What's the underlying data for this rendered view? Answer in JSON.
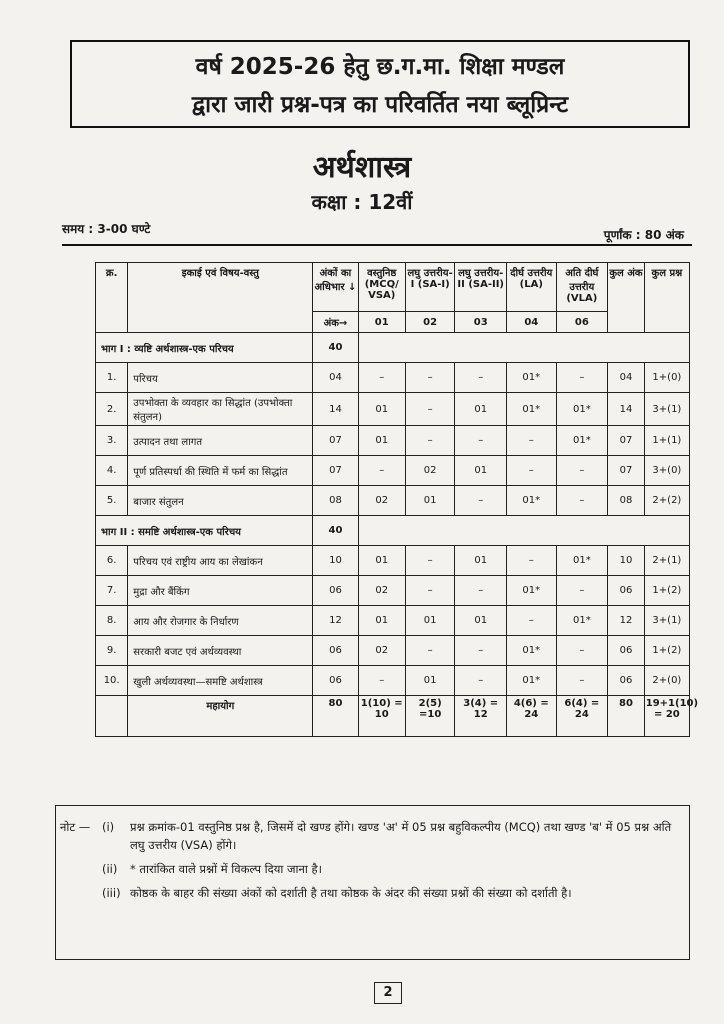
{
  "header": {
    "line1": "वर्ष 2025-26 हेतु छ.ग.मा. शिक्षा मण्डल",
    "line2": "द्वारा जारी प्रश्न-पत्र का परिवर्तित नया ब्लूप्रिन्ट"
  },
  "subject": "अर्थशास्त्र",
  "class": "कक्षा : 12वीं",
  "time": "समय : 3-00 घण्टे",
  "max_marks": "पूर्णांक : 80 अंक",
  "table": {
    "columns": [
      "क्र.",
      "इकाई एवं विषय-वस्तु",
      "अंकों का अधिभार ↓",
      "वस्तुनिष्ठ (MCQ/ VSA)",
      "लघु उत्तरीय-I (SA-I)",
      "लघु उत्तरीय-II (SA-II)",
      "दीर्घ उत्तरीय (LA)",
      "अति दीर्घ उत्तरीय (VLA)",
      "कुल अंक",
      "कुल प्रश्न"
    ],
    "marks_row": {
      "label": "अंक→",
      "values": [
        "01",
        "02",
        "03",
        "04",
        "06"
      ]
    },
    "rows": [
      {
        "section": "भाग I : व्यष्टि अर्थशास्त्र-एक परिचय",
        "weight": "40"
      },
      {
        "no": "1.",
        "topic": "परिचय",
        "cells": [
          "04",
          "–",
          "–",
          "–",
          "01*",
          "–",
          "04",
          "1+(0)"
        ]
      },
      {
        "no": "2.",
        "topic": "उपभोक्ता के व्यवहार का सिद्धांत (उपभोक्ता संतुलन)",
        "cells": [
          "14",
          "01",
          "–",
          "01",
          "01*",
          "01*",
          "14",
          "3+(1)"
        ]
      },
      {
        "no": "3.",
        "topic": "उत्पादन तथा लागत",
        "cells": [
          "07",
          "01",
          "–",
          "–",
          "–",
          "01*",
          "07",
          "1+(1)"
        ]
      },
      {
        "no": "4.",
        "topic": "पूर्ण प्रतिस्पर्धा की स्थिति में फर्म का सिद्धांत",
        "cells": [
          "07",
          "–",
          "02",
          "01",
          "–",
          "–",
          "07",
          "3+(0)"
        ]
      },
      {
        "no": "5.",
        "topic": "बाजार संतुलन",
        "cells": [
          "08",
          "02",
          "01",
          "–",
          "01*",
          "–",
          "08",
          "2+(2)"
        ]
      },
      {
        "section": "भाग II : समष्टि अर्थशास्त्र-एक परिचय",
        "weight": "40"
      },
      {
        "no": "6.",
        "topic": "परिचय एवं राष्ट्रीय आय का लेखांकन",
        "cells": [
          "10",
          "01",
          "–",
          "01",
          "–",
          "01*",
          "10",
          "2+(1)"
        ]
      },
      {
        "no": "7.",
        "topic": "मुद्रा और बैंकिंग",
        "cells": [
          "06",
          "02",
          "–",
          "–",
          "01*",
          "–",
          "06",
          "1+(2)"
        ]
      },
      {
        "no": "8.",
        "topic": "आय और रोजगार के निर्धारण",
        "cells": [
          "12",
          "01",
          "01",
          "01",
          "–",
          "01*",
          "12",
          "3+(1)"
        ]
      },
      {
        "no": "9.",
        "topic": "सरकारी बजट एवं अर्थव्यवस्था",
        "cells": [
          "06",
          "02",
          "–",
          "–",
          "01*",
          "–",
          "06",
          "1+(2)"
        ]
      },
      {
        "no": "10.",
        "topic": "खुली अर्थव्यवस्था—समष्टि अर्थशास्त्र",
        "cells": [
          "06",
          "–",
          "01",
          "–",
          "01*",
          "–",
          "06",
          "2+(0)"
        ]
      }
    ],
    "total": {
      "label": "महायोग",
      "cells": [
        "80",
        "1(10) = 10",
        "2(5) =10",
        "3(4) = 12",
        "4(6) = 24",
        "6(4) = 24",
        "80",
        "19+1(10) = 20"
      ]
    }
  },
  "notes": {
    "label": "नोट —",
    "items": [
      {
        "marker": "(i)",
        "text": "प्रश्न क्रमांक-01 वस्तुनिष्ठ प्रश्न है, जिसमें दो खण्ड होंगे। खण्ड 'अ' में 05 प्रश्न बहुविकल्पीय (MCQ) तथा खण्ड 'ब' में 05 प्रश्न अति लघु उत्तरीय (VSA) होंगे।"
      },
      {
        "marker": "(ii)",
        "text": "* तारांकित वाले प्रश्नों में विकल्प दिया जाना है।"
      },
      {
        "marker": "(iii)",
        "text": "कोष्ठक के बाहर की संख्या अंकों को दर्शाती है तथा कोष्ठक के अंदर की संख्या प्रश्नों की संख्या को दर्शाती है।"
      }
    ]
  },
  "page_number": "2"
}
